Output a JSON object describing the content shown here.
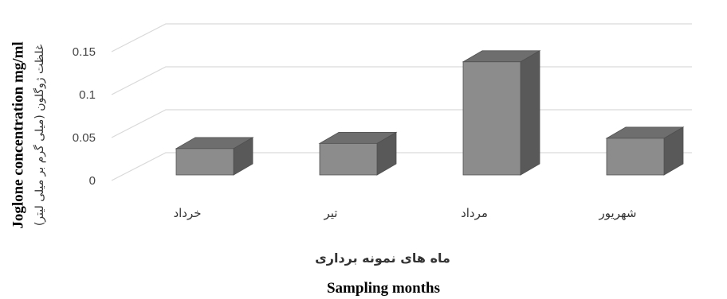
{
  "chart_data": {
    "type": "bar",
    "categories": [
      "خرداد",
      "تیر",
      "مرداد",
      "شهریور"
    ],
    "values": [
      0.027,
      0.033,
      0.128,
      0.039
    ],
    "ylim": [
      0,
      0.15
    ],
    "yticks": [
      0,
      0.05,
      0.1,
      0.15
    ],
    "ytick_labels": [
      "0",
      "0.05",
      "0.1",
      "0.15"
    ],
    "xlabel": "Sampling months",
    "xlabel_fa": "ماه های نمونه برداری",
    "ylabel": "Joglone concentration mg/ml",
    "ylabel_fa": "غلظت ژوگلون (میلی گرم بر میلی لیتر)",
    "grid": true,
    "three_d": true,
    "colors": {
      "bar_front": "#8c8c8c",
      "bar_top": "#6e6e6e",
      "bar_side": "#595959",
      "bar_edge": "#505050",
      "grid": "#d9d9d9"
    }
  }
}
